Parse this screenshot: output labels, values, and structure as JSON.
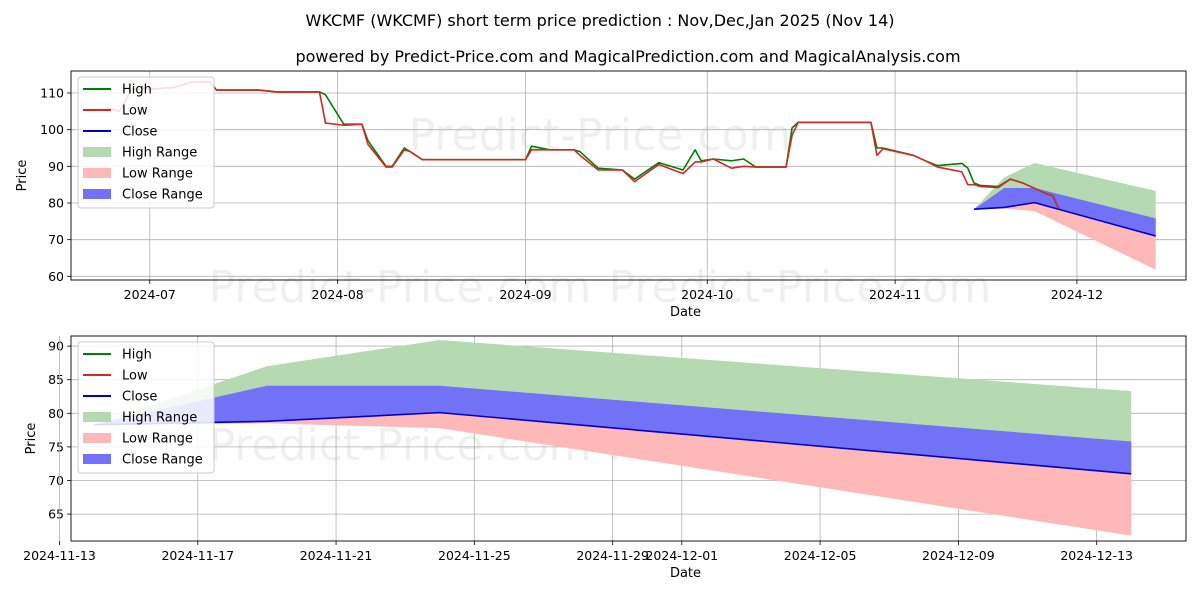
{
  "title_line1": "WKCMF (WKCMF) short term price prediction : Nov,Dec,Jan 2025 (Nov 14)",
  "title_line2": "powered by Predict-Price.com and MagicalPrediction.com and MagicalAnalysis.com",
  "watermark": "Predict-Price.com",
  "chart_data": [
    {
      "type": "line",
      "title": "WKCMF (WKCMF) short term price prediction : Nov,Dec,Jan 2025 (Nov 14)",
      "xlabel": "Date",
      "ylabel": "Price",
      "ylim": [
        59,
        116
      ],
      "xlim": [
        "2024-06-18",
        "2024-12-19"
      ],
      "yticks": [
        60,
        70,
        80,
        90,
        100,
        110
      ],
      "ytick_labels": [
        "60",
        "70",
        "80",
        "90",
        "100",
        "110"
      ],
      "xticks": [
        "2024-07-01",
        "2024-08-01",
        "2024-09-01",
        "2024-10-01",
        "2024-11-01",
        "2024-12-01"
      ],
      "xtick_labels": [
        "2024-07",
        "2024-08",
        "2024-09",
        "2024-10",
        "2024-11",
        "2024-12"
      ],
      "legend_position": "top-left",
      "legend": [
        "High",
        "Low",
        "Close",
        "High Range",
        "Low Range",
        "Close Range"
      ],
      "colors": {
        "high": "#008000",
        "low": "#d62728",
        "close": "#0000cc",
        "high_range": "#b5d9b0",
        "low_range": "#ffb8b8",
        "close_range": "#7272f7"
      },
      "series": [
        {
          "name": "High",
          "points": [
            [
              "2024-06-24",
              106
            ],
            [
              "2024-06-26",
              105
            ],
            [
              "2024-06-28",
              111
            ],
            [
              "2024-07-01",
              111
            ],
            [
              "2024-07-05",
              111.5
            ],
            [
              "2024-07-08",
              113
            ],
            [
              "2024-07-11",
              113
            ],
            [
              "2024-07-12",
              110.8
            ],
            [
              "2024-07-15",
              110.8
            ],
            [
              "2024-07-19",
              110.8
            ],
            [
              "2024-07-22",
              110.3
            ],
            [
              "2024-07-26",
              110.3
            ],
            [
              "2024-07-29",
              110.3
            ],
            [
              "2024-07-30",
              109.5
            ],
            [
              "2024-08-02",
              101.5
            ],
            [
              "2024-08-05",
              101.5
            ],
            [
              "2024-08-06",
              97
            ],
            [
              "2024-08-09",
              90
            ],
            [
              "2024-08-10",
              90
            ],
            [
              "2024-08-12",
              95
            ],
            [
              "2024-08-13",
              94
            ],
            [
              "2024-08-15",
              91.8
            ],
            [
              "2024-08-20",
              91.8
            ],
            [
              "2024-09-01",
              91.8
            ],
            [
              "2024-09-02",
              95.5
            ],
            [
              "2024-09-05",
              94.5
            ],
            [
              "2024-09-09",
              94.5
            ],
            [
              "2024-09-10",
              94
            ],
            [
              "2024-09-13",
              89.5
            ],
            [
              "2024-09-17",
              89
            ],
            [
              "2024-09-19",
              86.5
            ],
            [
              "2024-09-23",
              91
            ],
            [
              "2024-09-27",
              89
            ],
            [
              "2024-09-29",
              94.5
            ],
            [
              "2024-09-30",
              91.5
            ],
            [
              "2024-10-02",
              92
            ],
            [
              "2024-10-05",
              91.5
            ],
            [
              "2024-10-07",
              92
            ],
            [
              "2024-10-09",
              89.8
            ],
            [
              "2024-10-14",
              89.8
            ],
            [
              "2024-10-15",
              100.5
            ],
            [
              "2024-10-16",
              102
            ],
            [
              "2024-10-25",
              102
            ],
            [
              "2024-10-28",
              102
            ],
            [
              "2024-10-29",
              95
            ],
            [
              "2024-10-30",
              95
            ],
            [
              "2024-11-04",
              93
            ],
            [
              "2024-11-06",
              91.5
            ],
            [
              "2024-11-08",
              90.2
            ],
            [
              "2024-11-12",
              90.8
            ],
            [
              "2024-11-13",
              89.5
            ],
            [
              "2024-11-14",
              85.5
            ],
            [
              "2024-11-15",
              84.8
            ],
            [
              "2024-11-18",
              84.5
            ],
            [
              "2024-11-20",
              86.5
            ],
            [
              "2024-11-22",
              85.5
            ],
            [
              "2024-11-26",
              82.5
            ],
            [
              "2024-11-27",
              82
            ],
            [
              "2024-11-28",
              78.5
            ]
          ]
        },
        {
          "name": "Low",
          "points": [
            [
              "2024-06-24",
              106
            ],
            [
              "2024-06-26",
              105
            ],
            [
              "2024-06-28",
              111
            ],
            [
              "2024-07-01",
              111
            ],
            [
              "2024-07-05",
              111.5
            ],
            [
              "2024-07-08",
              113
            ],
            [
              "2024-07-11",
              113
            ],
            [
              "2024-07-12",
              110.8
            ],
            [
              "2024-07-15",
              110.8
            ],
            [
              "2024-07-19",
              110.8
            ],
            [
              "2024-07-22",
              110.3
            ],
            [
              "2024-07-26",
              110.3
            ],
            [
              "2024-07-29",
              110.3
            ],
            [
              "2024-07-30",
              101.8
            ],
            [
              "2024-08-02",
              101.2
            ],
            [
              "2024-08-05",
              101.5
            ],
            [
              "2024-08-06",
              96
            ],
            [
              "2024-08-09",
              89.8
            ],
            [
              "2024-08-10",
              89.8
            ],
            [
              "2024-08-12",
              94.5
            ],
            [
              "2024-08-13",
              94
            ],
            [
              "2024-08-15",
              91.8
            ],
            [
              "2024-08-20",
              91.8
            ],
            [
              "2024-09-01",
              91.8
            ],
            [
              "2024-09-02",
              94.5
            ],
            [
              "2024-09-05",
              94.5
            ],
            [
              "2024-09-09",
              94.5
            ],
            [
              "2024-09-10",
              93
            ],
            [
              "2024-09-13",
              89
            ],
            [
              "2024-09-17",
              89
            ],
            [
              "2024-09-19",
              85.8
            ],
            [
              "2024-09-23",
              90.5
            ],
            [
              "2024-09-27",
              88
            ],
            [
              "2024-09-29",
              91.2
            ],
            [
              "2024-09-30",
              91.2
            ],
            [
              "2024-10-02",
              92
            ],
            [
              "2024-10-05",
              89.5
            ],
            [
              "2024-10-07",
              90
            ],
            [
              "2024-10-09",
              89.8
            ],
            [
              "2024-10-14",
              89.8
            ],
            [
              "2024-10-15",
              98.5
            ],
            [
              "2024-10-16",
              102
            ],
            [
              "2024-10-25",
              102
            ],
            [
              "2024-10-28",
              102
            ],
            [
              "2024-10-29",
              93
            ],
            [
              "2024-10-30",
              94.8
            ],
            [
              "2024-11-04",
              93
            ],
            [
              "2024-11-06",
              91.5
            ],
            [
              "2024-11-08",
              89.8
            ],
            [
              "2024-11-12",
              88.5
            ],
            [
              "2024-11-13",
              85
            ],
            [
              "2024-11-14",
              85
            ],
            [
              "2024-11-15",
              84.5
            ],
            [
              "2024-11-18",
              84.2
            ],
            [
              "2024-11-20",
              86.5
            ],
            [
              "2024-11-22",
              85.5
            ],
            [
              "2024-11-26",
              82.5
            ],
            [
              "2024-11-27",
              82
            ],
            [
              "2024-11-28",
              78.3
            ]
          ]
        },
        {
          "name": "Close",
          "points": [
            [
              "2024-11-14",
              78.3
            ],
            [
              "2024-11-19",
              78.8
            ],
            [
              "2024-11-24",
              80.1
            ],
            [
              "2024-12-14",
              71
            ]
          ]
        },
        {
          "name": "High Range",
          "upper": [
            [
              "2024-11-14",
              78.3
            ],
            [
              "2024-11-19",
              87
            ],
            [
              "2024-11-24",
              90.9
            ],
            [
              "2024-12-14",
              83.3
            ]
          ],
          "lower": [
            [
              "2024-11-14",
              78.3
            ],
            [
              "2024-11-19",
              78.8
            ],
            [
              "2024-11-24",
              80.1
            ],
            [
              "2024-12-14",
              71
            ]
          ]
        },
        {
          "name": "Low Range",
          "upper": [
            [
              "2024-11-14",
              78.3
            ],
            [
              "2024-11-19",
              78.8
            ],
            [
              "2024-11-24",
              80.1
            ],
            [
              "2024-12-14",
              71
            ]
          ],
          "lower": [
            [
              "2024-11-14",
              78.3
            ],
            [
              "2024-11-19",
              78.5
            ],
            [
              "2024-11-24",
              77.8
            ],
            [
              "2024-12-14",
              61.8
            ]
          ]
        },
        {
          "name": "Close Range",
          "upper": [
            [
              "2024-11-14",
              78.3
            ],
            [
              "2024-11-19",
              84.1
            ],
            [
              "2024-11-24",
              84.1
            ],
            [
              "2024-12-14",
              75.8
            ]
          ],
          "lower": [
            [
              "2024-11-14",
              78.3
            ],
            [
              "2024-11-19",
              78.8
            ],
            [
              "2024-11-24",
              80.1
            ],
            [
              "2024-12-14",
              71
            ]
          ]
        }
      ]
    },
    {
      "type": "line",
      "title": "",
      "xlabel": "Date",
      "ylabel": "Price",
      "ylim": [
        61,
        91.5
      ],
      "xlim": [
        "2024-11-13T08:00",
        "2024-12-15T14:00"
      ],
      "yticks": [
        65,
        70,
        75,
        80,
        85,
        90
      ],
      "ytick_labels": [
        "65",
        "70",
        "75",
        "80",
        "85",
        "90"
      ],
      "xticks": [
        "2024-11-13",
        "2024-11-17",
        "2024-11-21",
        "2024-11-25",
        "2024-11-29",
        "2024-12-01",
        "2024-12-05",
        "2024-12-09",
        "2024-12-13"
      ],
      "xtick_labels": [
        "2024-11-13",
        "2024-11-17",
        "2024-11-21",
        "2024-11-25",
        "2024-11-29",
        "2024-12-01",
        "2024-12-05",
        "2024-12-09",
        "2024-12-13"
      ],
      "legend_position": "top-left",
      "legend": [
        "High",
        "Low",
        "Close",
        "High Range",
        "Low Range",
        "Close Range"
      ],
      "colors": {
        "high": "#008000",
        "low": "#d62728",
        "close": "#0000cc",
        "high_range": "#b5d9b0",
        "low_range": "#ffb8b8",
        "close_range": "#7272f7"
      },
      "series": [
        {
          "name": "Close",
          "points": [
            [
              "2024-11-14",
              78.3
            ],
            [
              "2024-11-19",
              78.8
            ],
            [
              "2024-11-24",
              80.1
            ],
            [
              "2024-12-14",
              71
            ]
          ]
        },
        {
          "name": "High Range",
          "upper": [
            [
              "2024-11-14",
              78.3
            ],
            [
              "2024-11-19",
              87
            ],
            [
              "2024-11-24",
              90.9
            ],
            [
              "2024-12-14",
              83.3
            ]
          ],
          "lower": [
            [
              "2024-11-14",
              78.3
            ],
            [
              "2024-11-19",
              78.8
            ],
            [
              "2024-11-24",
              80.1
            ],
            [
              "2024-12-14",
              71
            ]
          ]
        },
        {
          "name": "Low Range",
          "upper": [
            [
              "2024-11-14",
              78.3
            ],
            [
              "2024-11-19",
              78.8
            ],
            [
              "2024-11-24",
              80.1
            ],
            [
              "2024-12-14",
              71
            ]
          ],
          "lower": [
            [
              "2024-11-14",
              78.3
            ],
            [
              "2024-11-19",
              78.5
            ],
            [
              "2024-11-24",
              77.8
            ],
            [
              "2024-12-14",
              61.8
            ]
          ]
        },
        {
          "name": "Close Range",
          "upper": [
            [
              "2024-11-14",
              78.3
            ],
            [
              "2024-11-19",
              84.1
            ],
            [
              "2024-11-24",
              84.1
            ],
            [
              "2024-12-14",
              75.8
            ]
          ],
          "lower": [
            [
              "2024-11-14",
              78.3
            ],
            [
              "2024-11-19",
              78.8
            ],
            [
              "2024-11-24",
              80.1
            ],
            [
              "2024-12-14",
              71
            ]
          ]
        }
      ]
    }
  ]
}
